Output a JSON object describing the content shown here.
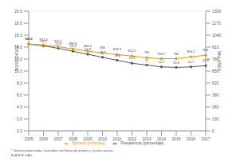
{
  "chart_data": {
    "type": "line",
    "categories": [
      "2005",
      "2006",
      "2007",
      "2008",
      "2009",
      "2010",
      "2011",
      "2012",
      "2013",
      "2014",
      "2015",
      "2016",
      "2017"
    ],
    "y_label": "PORCENTAJE",
    "y2_label": "MILLONES",
    "series": [
      {
        "name": "Prevalencia (porcentaje)",
        "color": "#4d5a6a",
        "marker": "circle",
        "values": [
          14.5,
          14.2,
          13.8,
          13.3,
          12.8,
          12.3,
          11.8,
          11.3,
          11.0,
          10.7,
          10.6,
          10.7,
          10.9
        ]
      },
      {
        "name": "Número (millones)",
        "color": "#f39200",
        "marker": "circle",
        "axis": "y2",
        "values": [
          945.2,
          932.4,
          915.1,
          889.6,
          866.3,
          846.0,
          828.3,
          812.5,
          796.0,
          783.7,
          784.0,
          804.2,
          821.0
        ]
      }
    ],
    "ylim": [
      0,
      20
    ],
    "yticks": [
      {
        "value": 0,
        "label": "0.0"
      },
      {
        "value": 2,
        "label": "2.0"
      },
      {
        "value": 4,
        "label": "4.0"
      },
      {
        "value": 6,
        "label": "6.0"
      },
      {
        "value": 8,
        "label": "8.0"
      },
      {
        "value": 10,
        "label": "10.0"
      },
      {
        "value": 12,
        "label": "12.0"
      },
      {
        "value": 14,
        "label": "14.0"
      },
      {
        "value": 16,
        "label": "16.0"
      },
      {
        "value": 18,
        "label": "18.0"
      },
      {
        "value": 20,
        "label": "20.0"
      }
    ],
    "y2lim": [
      0,
      1300
    ],
    "y2ticks": [
      0,
      130,
      260,
      390,
      520,
      650,
      780,
      910,
      1040,
      1170,
      1300
    ],
    "grid": true,
    "data_labels": true,
    "legend": "bottom",
    "annotations": [
      "* Valores proyectados, ilustrados con líneas de puntos y círculos vacíos.",
      "FUENTE: FAO."
    ]
  }
}
